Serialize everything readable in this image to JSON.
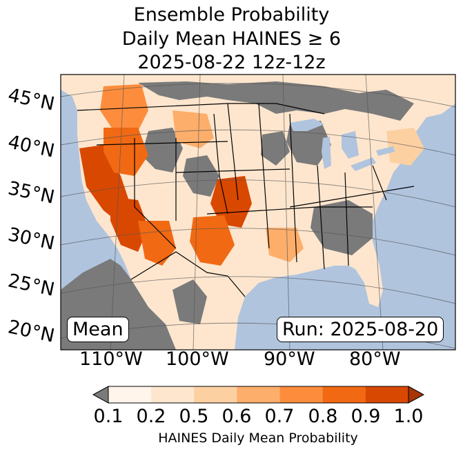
{
  "title": {
    "line1": "Ensemble Probability",
    "line2": "Daily Mean HAINES ≥ 6",
    "line3": "2025-08-22 12z-12z"
  },
  "map": {
    "latitude_labels": [
      "45°N",
      "40°N",
      "35°N",
      "30°N",
      "25°N",
      "20°N"
    ],
    "longitude_labels": [
      "110°W",
      "100°W",
      "90°W",
      "80°W"
    ],
    "stat_label": "Mean",
    "run_label": "Run: 2025-08-20",
    "colors": {
      "ocean": "#b0c4de",
      "missing": "#7a7a7a",
      "p01": "#fff5eb",
      "p02": "#fee6ce",
      "p05": "#fdd0a2",
      "p06": "#fdae6b",
      "p07": "#fd8d3c",
      "p08": "#f16913",
      "p09": "#d94801",
      "p10": "#a63603"
    }
  },
  "colorbar": {
    "ticks": [
      "0.1",
      "0.2",
      "0.5",
      "0.6",
      "0.7",
      "0.8",
      "0.9",
      "1.0"
    ],
    "colors": [
      "#fff5eb",
      "#fee6ce",
      "#fdd0a2",
      "#fdae6b",
      "#fd8d3c",
      "#f16913",
      "#d94801"
    ],
    "under_color": "#7a7a7a",
    "over_color": "#a63603",
    "label": "HAINES Daily Mean Probability"
  }
}
